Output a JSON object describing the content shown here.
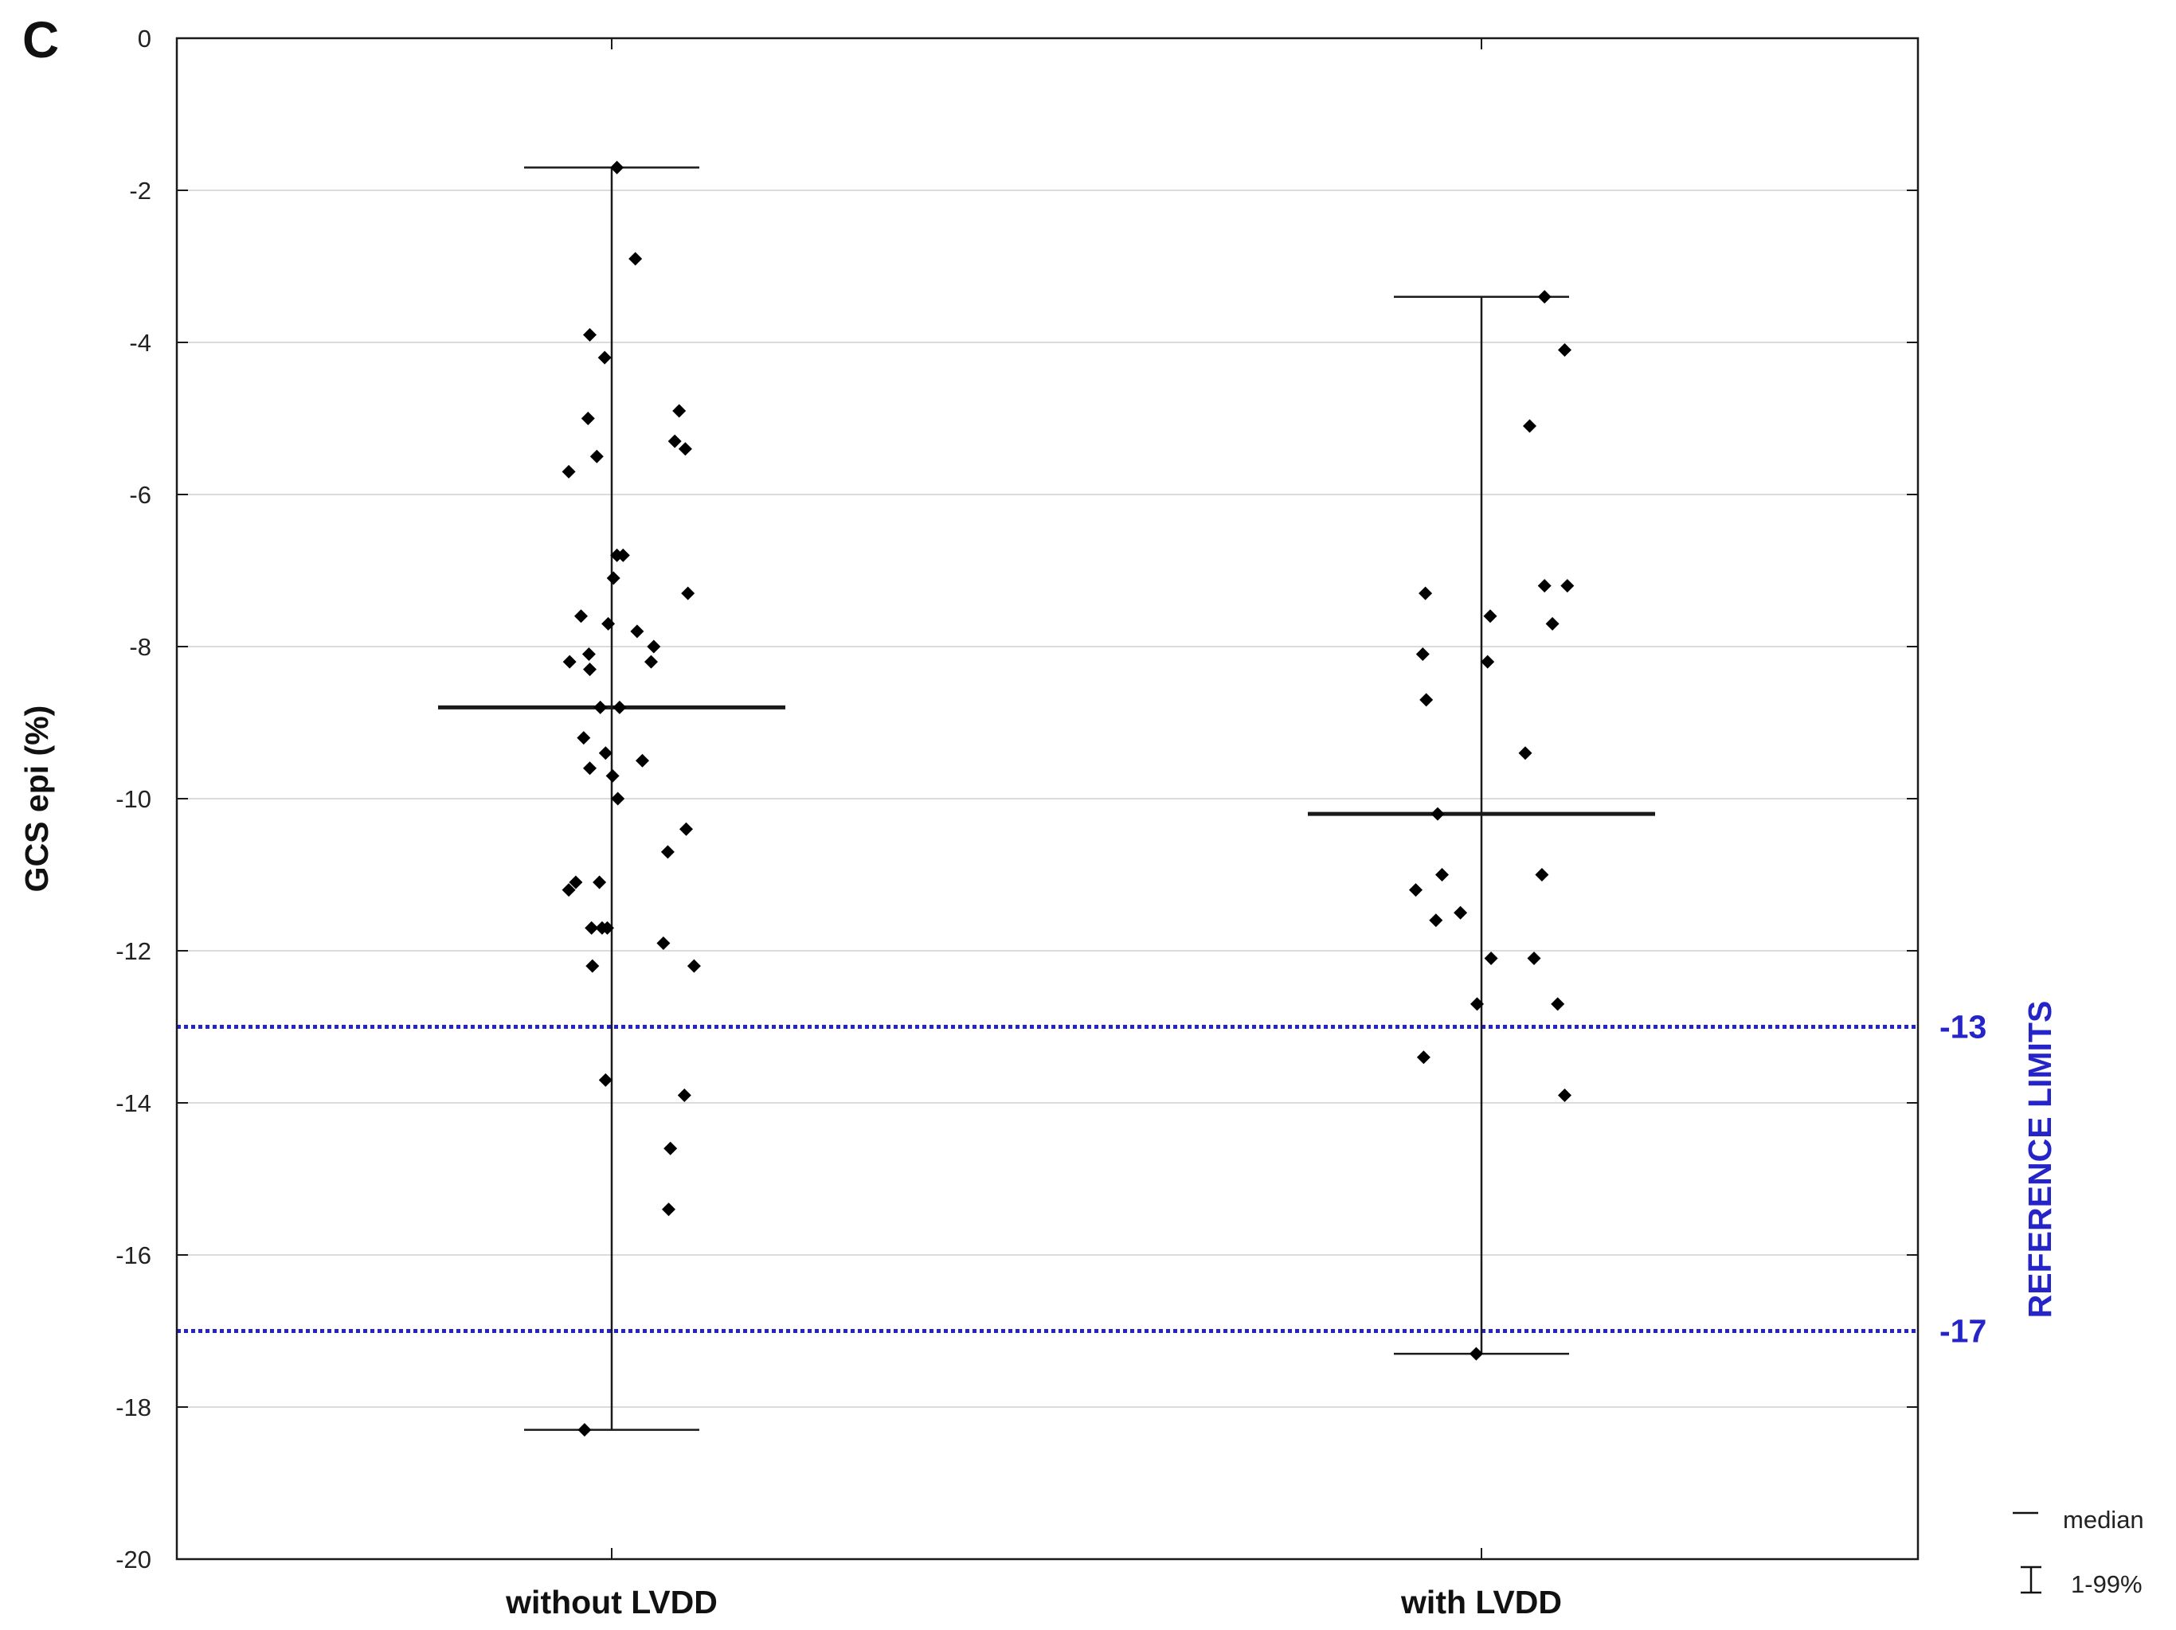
{
  "panel_label": "C",
  "chart_data": {
    "type": "scatter",
    "ylabel": "GCS epi (%)",
    "ylim": [
      -20,
      0
    ],
    "yticks": [
      0,
      -2,
      -4,
      -6,
      -8,
      -10,
      -12,
      -14,
      -16,
      -18,
      -20
    ],
    "grid": "horizontal",
    "categories": [
      "without LVDD",
      "with LVDD"
    ],
    "groups": [
      {
        "category": "without LVDD",
        "median": -8.8,
        "range_1_99": [
          -18.3,
          -1.7
        ],
        "points": [
          {
            "jitter": 0.06,
            "y": -1.7
          },
          {
            "jitter": 0.27,
            "y": -2.9
          },
          {
            "jitter": -0.25,
            "y": -3.9
          },
          {
            "jitter": -0.08,
            "y": -4.2
          },
          {
            "jitter": 0.77,
            "y": -4.9
          },
          {
            "jitter": -0.27,
            "y": -5.0
          },
          {
            "jitter": 0.72,
            "y": -5.3
          },
          {
            "jitter": 0.84,
            "y": -5.4
          },
          {
            "jitter": -0.17,
            "y": -5.5
          },
          {
            "jitter": -0.49,
            "y": -5.7
          },
          {
            "jitter": 0.06,
            "y": -6.8
          },
          {
            "jitter": 0.13,
            "y": -6.8
          },
          {
            "jitter": 0.02,
            "y": -7.1
          },
          {
            "jitter": 0.87,
            "y": -7.3
          },
          {
            "jitter": -0.35,
            "y": -7.6
          },
          {
            "jitter": -0.04,
            "y": -7.7
          },
          {
            "jitter": 0.29,
            "y": -7.8
          },
          {
            "jitter": 0.48,
            "y": -8.0
          },
          {
            "jitter": -0.26,
            "y": -8.1
          },
          {
            "jitter": -0.48,
            "y": -8.2
          },
          {
            "jitter": 0.45,
            "y": -8.2
          },
          {
            "jitter": -0.25,
            "y": -8.3
          },
          {
            "jitter": -0.13,
            "y": -8.8
          },
          {
            "jitter": 0.09,
            "y": -8.8
          },
          {
            "jitter": -0.32,
            "y": -9.2
          },
          {
            "jitter": -0.07,
            "y": -9.4
          },
          {
            "jitter": 0.35,
            "y": -9.5
          },
          {
            "jitter": -0.25,
            "y": -9.6
          },
          {
            "jitter": 0.01,
            "y": -9.7
          },
          {
            "jitter": 0.07,
            "y": -10.0
          },
          {
            "jitter": 0.85,
            "y": -10.4
          },
          {
            "jitter": 0.64,
            "y": -10.7
          },
          {
            "jitter": -0.41,
            "y": -11.1
          },
          {
            "jitter": -0.14,
            "y": -11.1
          },
          {
            "jitter": -0.49,
            "y": -11.2
          },
          {
            "jitter": -0.23,
            "y": -11.7
          },
          {
            "jitter": -0.11,
            "y": -11.7
          },
          {
            "jitter": -0.05,
            "y": -11.7
          },
          {
            "jitter": 0.59,
            "y": -11.9
          },
          {
            "jitter": -0.22,
            "y": -12.2
          },
          {
            "jitter": 0.94,
            "y": -12.2
          },
          {
            "jitter": -0.07,
            "y": -13.7
          },
          {
            "jitter": 0.83,
            "y": -13.9
          },
          {
            "jitter": 0.67,
            "y": -14.6
          },
          {
            "jitter": 0.65,
            "y": -15.4
          },
          {
            "jitter": -0.31,
            "y": -18.3
          }
        ]
      },
      {
        "category": "with LVDD",
        "median": -10.2,
        "range_1_99": [
          -17.3,
          -3.4
        ],
        "points": [
          {
            "jitter": 0.72,
            "y": -3.4
          },
          {
            "jitter": 0.95,
            "y": -4.1
          },
          {
            "jitter": 0.55,
            "y": -5.1
          },
          {
            "jitter": 0.72,
            "y": -7.2
          },
          {
            "jitter": 0.98,
            "y": -7.2
          },
          {
            "jitter": -0.64,
            "y": -7.3
          },
          {
            "jitter": 0.1,
            "y": -7.6
          },
          {
            "jitter": 0.81,
            "y": -7.7
          },
          {
            "jitter": -0.67,
            "y": -8.1
          },
          {
            "jitter": 0.07,
            "y": -8.2
          },
          {
            "jitter": -0.63,
            "y": -8.7
          },
          {
            "jitter": 0.5,
            "y": -9.4
          },
          {
            "jitter": -0.5,
            "y": -10.2
          },
          {
            "jitter": -0.45,
            "y": -11.0
          },
          {
            "jitter": 0.69,
            "y": -11.0
          },
          {
            "jitter": -0.75,
            "y": -11.2
          },
          {
            "jitter": -0.24,
            "y": -11.5
          },
          {
            "jitter": -0.52,
            "y": -11.6
          },
          {
            "jitter": 0.11,
            "y": -12.1
          },
          {
            "jitter": 0.6,
            "y": -12.1
          },
          {
            "jitter": -0.05,
            "y": -12.7
          },
          {
            "jitter": 0.87,
            "y": -12.7
          },
          {
            "jitter": -0.66,
            "y": -13.4
          },
          {
            "jitter": 0.95,
            "y": -13.9
          },
          {
            "jitter": -0.06,
            "y": -17.3
          }
        ]
      }
    ],
    "reference_limits": {
      "label": "REFERENCE LIMITS",
      "values": [
        -13,
        -17
      ],
      "value_labels": [
        "-13",
        "-17"
      ],
      "color": "#2424c8"
    },
    "legend": {
      "placement": "bottom-right",
      "items": [
        {
          "symbol": "median-line",
          "label": "median"
        },
        {
          "symbol": "range-bar",
          "label": "1-99%"
        }
      ]
    }
  }
}
